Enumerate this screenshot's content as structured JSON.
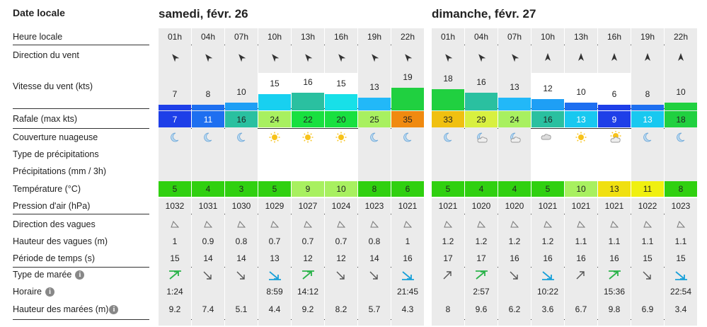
{
  "labels": {
    "date_locale": "Date locale",
    "heure_locale": "Heure locale",
    "direction_vent": "Direction du vent",
    "vitesse_vent": "Vitesse du vent (kts)",
    "rafale": "Rafale (max kts)",
    "couverture": "Couverture nuageuse",
    "type_precip": "Type de précipitations",
    "precip": "Précipitations (mm / 3h)",
    "temperature": "Température (°C)",
    "pression": "Pression d'air (hPa)",
    "dir_vagues": "Direction des vagues",
    "haut_vagues": "Hauteur des vagues (m)",
    "periode": "Période de temps (s)",
    "type_maree": "Type de marée",
    "horaire": "Horaire",
    "haut_marees": "Hauteur des marées (m)"
  },
  "info_icon": "i",
  "days": [
    {
      "title": "samedi, févr. 26",
      "hours": [
        "01h",
        "04h",
        "07h",
        "10h",
        "13h",
        "16h",
        "19h",
        "22h"
      ],
      "wind_dir": [
        "nw",
        "nw",
        "nw",
        "nw",
        "nw",
        "nw",
        "nw",
        "nw"
      ],
      "wind_speed": [
        "7",
        "8",
        "10",
        "15",
        "16",
        "15",
        "13",
        "19"
      ],
      "wind_color": [
        "#1e3fe8",
        "#1e6ff0",
        "#1e9ff5",
        "#18d0f0",
        "#2ac0a0",
        "#18e0e8",
        "#22b8f8",
        "#20d040"
      ],
      "gust": [
        "7",
        "11",
        "16",
        "24",
        "22",
        "20",
        "25",
        "35"
      ],
      "gust_color": [
        "#1e3fe8",
        "#1e6ff0",
        "#2ac0a0",
        "#a8f060",
        "#18e040",
        "#18e040",
        "#a8f060",
        "#f08a10"
      ],
      "cloud": [
        "moon",
        "moon",
        "moon",
        "sun",
        "sun",
        "sun",
        "moon",
        "moon"
      ],
      "temp": [
        "5",
        "4",
        "3",
        "5",
        "9",
        "10",
        "8",
        "6"
      ],
      "temp_color": [
        "#30d010",
        "#30d010",
        "#30d010",
        "#30d010",
        "#a8f060",
        "#a8f060",
        "#30d010",
        "#30d010"
      ],
      "pressure": [
        "1032",
        "1031",
        "1030",
        "1029",
        "1027",
        "1024",
        "1023",
        "1021"
      ],
      "wave_dir": [
        "sw",
        "sw",
        "sw",
        "sw",
        "sw",
        "sw",
        "sw",
        "sw"
      ],
      "wave_h": [
        "1",
        "0.9",
        "0.8",
        "0.7",
        "0.7",
        "0.7",
        "0.8",
        "1"
      ],
      "period": [
        "15",
        "14",
        "14",
        "13",
        "12",
        "12",
        "14",
        "16"
      ],
      "tide_type": [
        "high",
        "fall",
        "fall",
        "low",
        "high",
        "fall",
        "fall",
        "low"
      ],
      "tide_time": [
        "1:24",
        "",
        "",
        "8:59",
        "14:12",
        "",
        "",
        "21:45"
      ],
      "tide_h": [
        "9.2",
        "7.4",
        "5.1",
        "4.4",
        "9.2",
        "8.2",
        "5.7",
        "4.3"
      ]
    },
    {
      "title": "dimanche, févr. 27",
      "hours": [
        "01h",
        "04h",
        "07h",
        "10h",
        "13h",
        "16h",
        "19h",
        "22h"
      ],
      "wind_dir": [
        "nw",
        "nw",
        "nw",
        "n",
        "n",
        "n",
        "n",
        "n"
      ],
      "wind_speed": [
        "18",
        "16",
        "13",
        "12",
        "10",
        "6",
        "8",
        "10"
      ],
      "wind_color": [
        "#20d040",
        "#2ac0a0",
        "#22b8f8",
        "#1e9ff5",
        "#1e6ff0",
        "#1e3fe8",
        "#1e6ff0",
        "#20d040"
      ],
      "gust": [
        "33",
        "29",
        "24",
        "16",
        "13",
        "9",
        "13",
        "18"
      ],
      "gust_color": [
        "#f0c010",
        "#d8f040",
        "#a8f060",
        "#2ac0a0",
        "#18c8f0",
        "#1e3fe8",
        "#18c8f0",
        "#20d040"
      ],
      "cloud": [
        "moon",
        "moon-cloud",
        "moon-cloud",
        "cloud",
        "sun",
        "sun-cloud",
        "moon",
        "moon"
      ],
      "temp": [
        "5",
        "4",
        "4",
        "5",
        "10",
        "13",
        "11",
        "8"
      ],
      "temp_color": [
        "#30d010",
        "#30d010",
        "#30d010",
        "#30d010",
        "#a8f060",
        "#f0e010",
        "#f0f010",
        "#30d010"
      ],
      "pressure": [
        "1021",
        "1020",
        "1020",
        "1021",
        "1021",
        "1021",
        "1022",
        "1023"
      ],
      "wave_dir": [
        "sw",
        "sw",
        "sw",
        "sw",
        "sw",
        "sw",
        "sw",
        "sw"
      ],
      "wave_h": [
        "1.2",
        "1.2",
        "1.2",
        "1.2",
        "1.1",
        "1.1",
        "1.1",
        "1.1"
      ],
      "period": [
        "17",
        "17",
        "16",
        "16",
        "16",
        "16",
        "15",
        "15"
      ],
      "tide_type": [
        "rise",
        "high",
        "fall",
        "low",
        "rise",
        "high",
        "fall",
        "low"
      ],
      "tide_time": [
        "",
        "2:57",
        "",
        "10:22",
        "",
        "15:36",
        "",
        "22:54"
      ],
      "tide_h": [
        "8",
        "9.6",
        "6.2",
        "3.6",
        "6.7",
        "9.8",
        "6.9",
        "3.4"
      ]
    }
  ]
}
